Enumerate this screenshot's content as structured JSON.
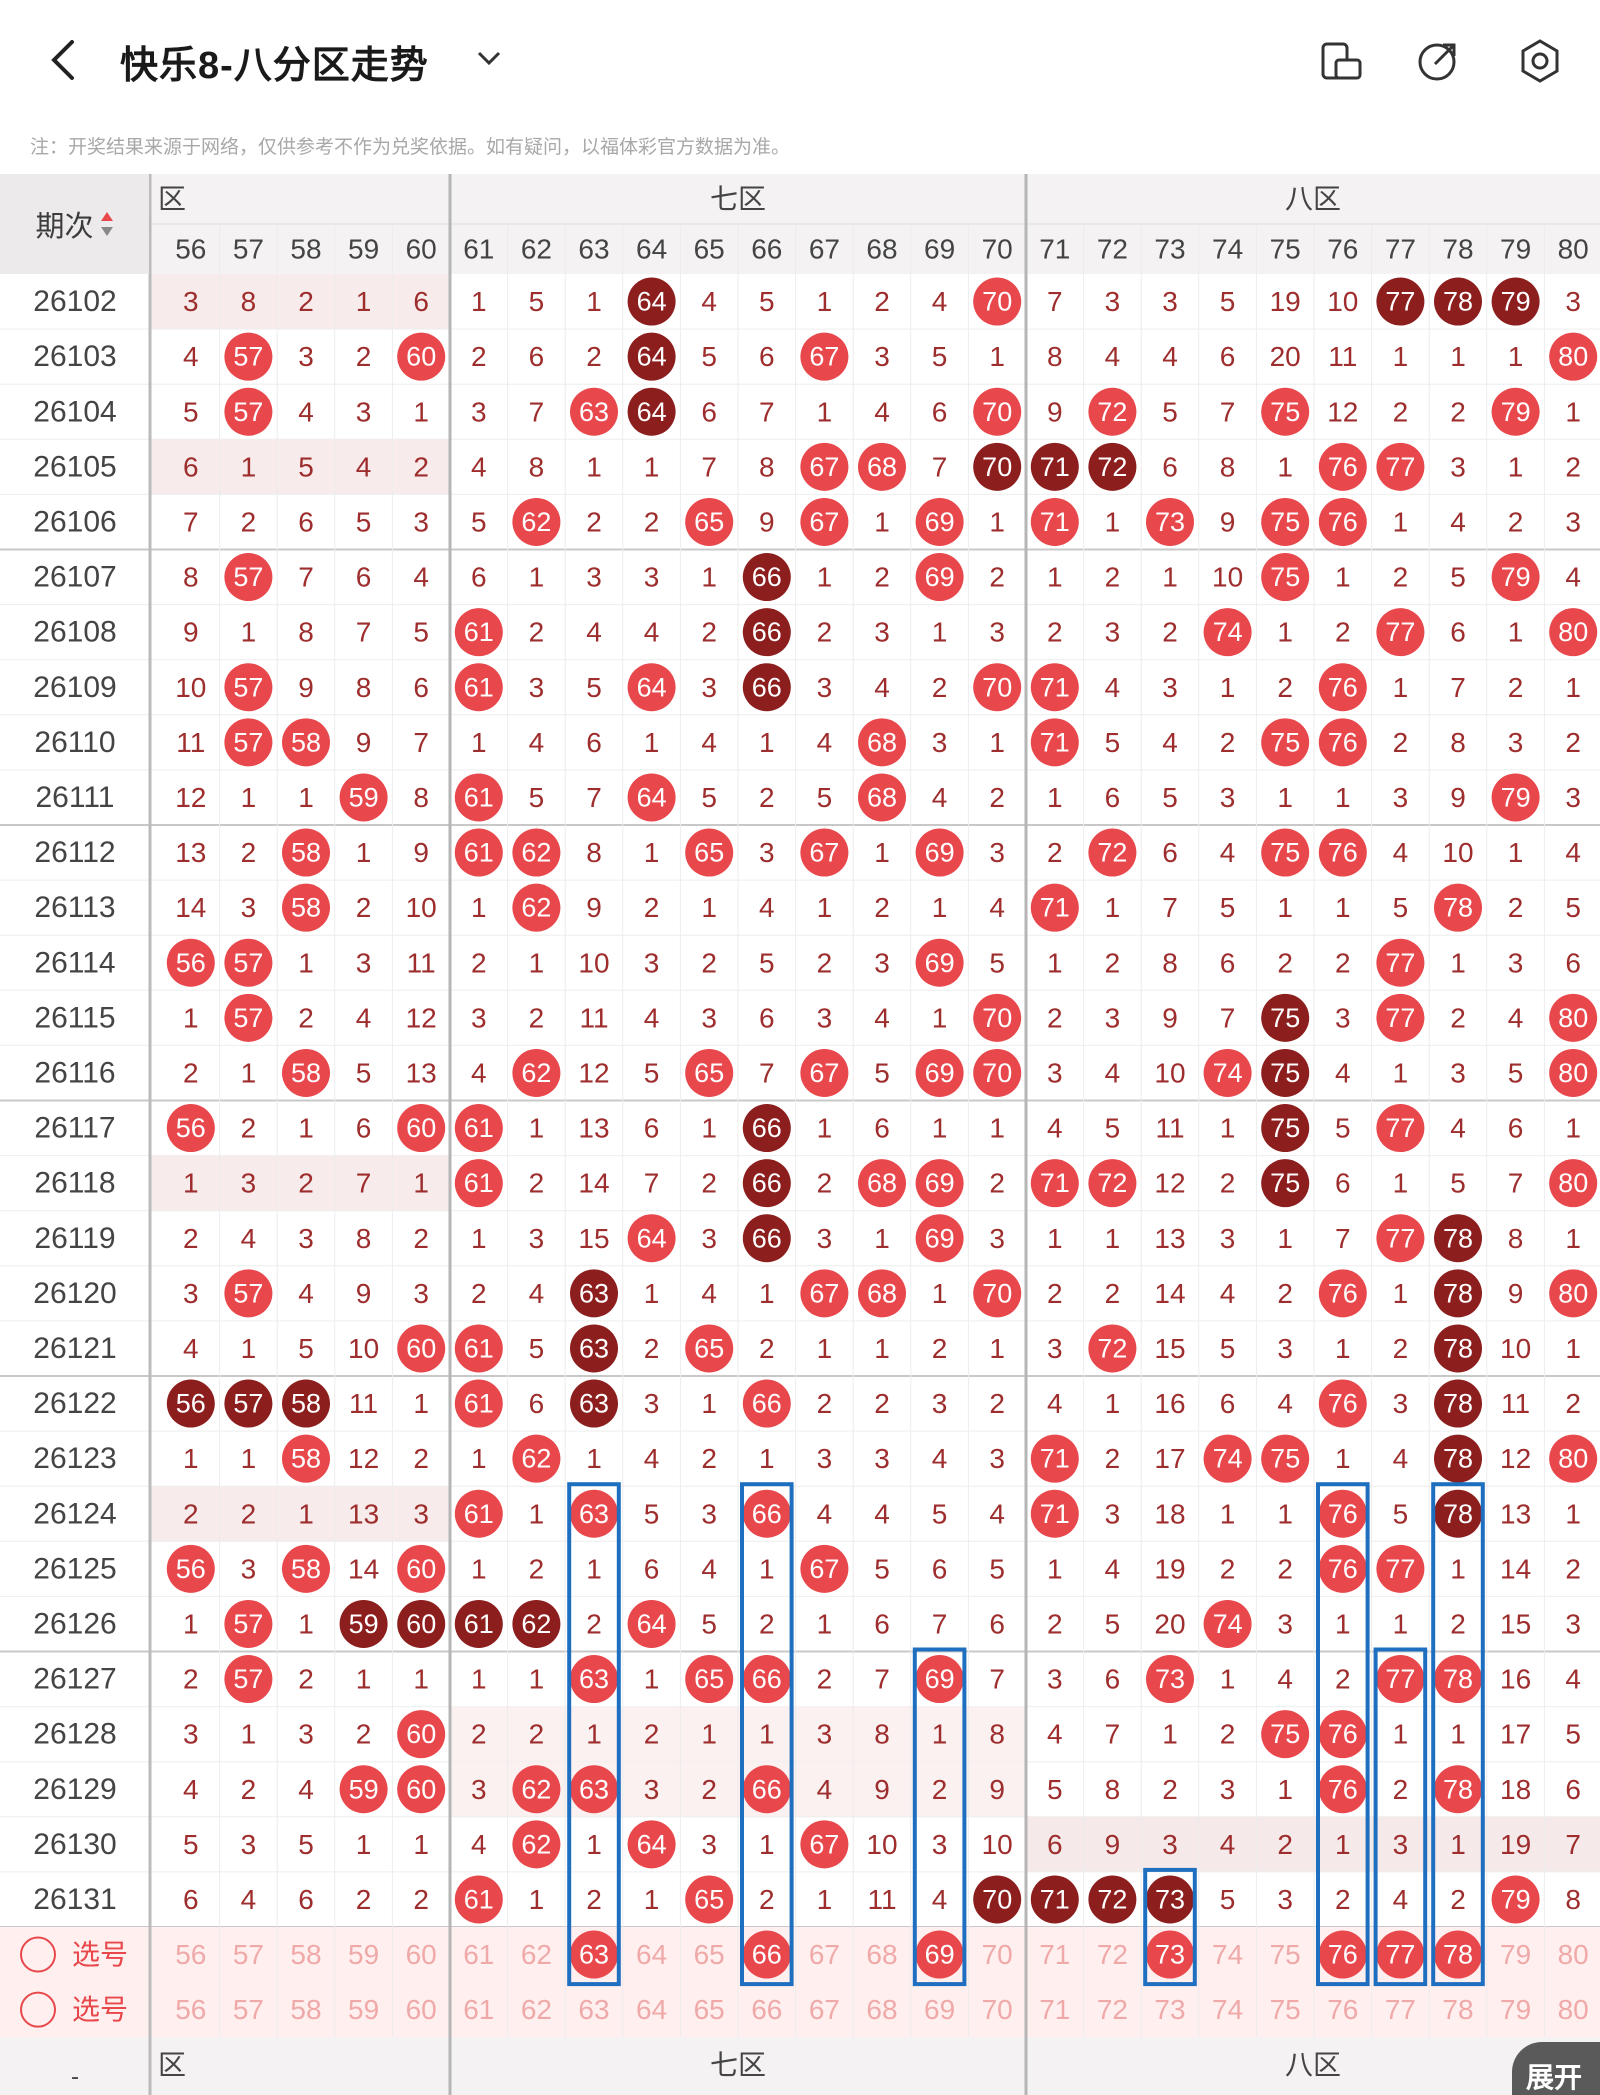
{
  "header": {
    "title": "快乐8-八分区走势",
    "back_icon": "chevron-left-icon",
    "dropdown_icon": "chevron-down-icon",
    "icons": [
      "tablet-landscape-icon",
      "share-icon",
      "settings-icon"
    ]
  },
  "note": "注：开奖结果来源于网络，仅供参考不作为兑奖依据。如有疑问，以福体彩官方数据为准。",
  "table": {
    "period_header": "期次",
    "zones": [
      "六区",
      "七区",
      "八区"
    ],
    "zone_six_visible_label": "六区",
    "zone_six_clipped_label": "区",
    "columns": [
      56,
      57,
      58,
      59,
      60,
      61,
      62,
      63,
      64,
      65,
      66,
      67,
      68,
      69,
      70,
      71,
      72,
      73,
      74,
      75,
      76,
      77,
      78,
      79,
      80
    ],
    "select_label": "选号",
    "expand_label": "展开",
    "rows": [
      {
        "period": "26102",
        "cells": [
          3,
          8,
          2,
          1,
          6,
          1,
          5,
          1,
          "H64",
          4,
          5,
          1,
          2,
          4,
          "R70",
          7,
          3,
          3,
          5,
          19,
          10,
          "H77",
          "H78",
          "H79",
          3
        ]
      },
      {
        "period": "26103",
        "cells": [
          4,
          "R57",
          3,
          2,
          "R60",
          2,
          6,
          2,
          "H64",
          5,
          6,
          "R67",
          3,
          5,
          1,
          8,
          4,
          4,
          6,
          20,
          11,
          1,
          1,
          1,
          "R80"
        ]
      },
      {
        "period": "26104",
        "cells": [
          5,
          "R57",
          4,
          3,
          1,
          3,
          7,
          "R63",
          "H64",
          6,
          7,
          1,
          4,
          6,
          "R70",
          9,
          "R72",
          5,
          7,
          "R75",
          12,
          2,
          2,
          "R79",
          1
        ]
      },
      {
        "period": "26105",
        "cells": [
          6,
          1,
          5,
          4,
          2,
          4,
          8,
          1,
          1,
          7,
          8,
          "R67",
          "R68",
          7,
          "H70",
          "H71",
          "H72",
          6,
          8,
          1,
          "R76",
          "R77",
          3,
          1,
          2
        ]
      },
      {
        "period": "26106",
        "cells": [
          7,
          2,
          6,
          5,
          3,
          5,
          "R62",
          2,
          2,
          "R65",
          9,
          "R67",
          1,
          "R69",
          1,
          "R71",
          1,
          "R73",
          9,
          "R75",
          "R76",
          1,
          4,
          2,
          3
        ]
      },
      {
        "period": "26107",
        "cells": [
          8,
          "R57",
          7,
          6,
          4,
          6,
          1,
          3,
          3,
          1,
          "H66",
          1,
          2,
          "R69",
          2,
          1,
          2,
          1,
          10,
          "R75",
          1,
          2,
          5,
          "R79",
          4
        ]
      },
      {
        "period": "26108",
        "cells": [
          9,
          1,
          8,
          7,
          5,
          "R61",
          2,
          4,
          4,
          2,
          "H66",
          2,
          3,
          1,
          3,
          2,
          3,
          2,
          "R74",
          1,
          2,
          "R77",
          6,
          1,
          "R80"
        ]
      },
      {
        "period": "26109",
        "cells": [
          10,
          "R57",
          9,
          8,
          6,
          "R61",
          3,
          5,
          "R64",
          3,
          "H66",
          3,
          4,
          2,
          "R70",
          "R71",
          4,
          3,
          1,
          2,
          "R76",
          1,
          7,
          2,
          1
        ]
      },
      {
        "period": "26110",
        "cells": [
          11,
          "R57",
          "R58",
          9,
          7,
          1,
          4,
          6,
          1,
          4,
          1,
          4,
          "R68",
          3,
          1,
          "R71",
          5,
          4,
          2,
          "R75",
          "R76",
          2,
          8,
          3,
          2
        ]
      },
      {
        "period": "26111",
        "cells": [
          12,
          1,
          1,
          "R59",
          8,
          "R61",
          5,
          7,
          "R64",
          5,
          2,
          5,
          "R68",
          4,
          2,
          1,
          6,
          5,
          3,
          1,
          1,
          3,
          9,
          "R79",
          3
        ]
      },
      {
        "period": "26112",
        "cells": [
          13,
          2,
          "R58",
          1,
          9,
          "R61",
          "R62",
          8,
          1,
          "R65",
          3,
          "R67",
          1,
          "R69",
          3,
          2,
          "R72",
          6,
          4,
          "R75",
          "R76",
          4,
          10,
          1,
          4
        ]
      },
      {
        "period": "26113",
        "cells": [
          14,
          3,
          "R58",
          2,
          10,
          1,
          "R62",
          9,
          2,
          1,
          4,
          1,
          2,
          1,
          4,
          "R71",
          1,
          7,
          5,
          1,
          1,
          5,
          "R78",
          2,
          5
        ]
      },
      {
        "period": "26114",
        "cells": [
          "R56",
          "R57",
          1,
          3,
          11,
          2,
          1,
          10,
          3,
          2,
          5,
          2,
          3,
          "R69",
          5,
          1,
          2,
          8,
          6,
          2,
          2,
          "R77",
          1,
          3,
          6
        ]
      },
      {
        "period": "26115",
        "cells": [
          1,
          "R57",
          2,
          4,
          12,
          3,
          2,
          11,
          4,
          3,
          6,
          3,
          4,
          1,
          "R70",
          2,
          3,
          9,
          7,
          "H75",
          3,
          "R77",
          2,
          4,
          "R80"
        ]
      },
      {
        "period": "26116",
        "cells": [
          2,
          1,
          "R58",
          5,
          13,
          4,
          "R62",
          12,
          5,
          "R65",
          7,
          "R67",
          5,
          "R69",
          "R70",
          3,
          4,
          10,
          "R74",
          "H75",
          4,
          1,
          3,
          5,
          "R80"
        ]
      },
      {
        "period": "26117",
        "cells": [
          "R56",
          2,
          1,
          6,
          "R60",
          "R61",
          1,
          13,
          6,
          1,
          "H66",
          1,
          6,
          1,
          1,
          4,
          5,
          11,
          1,
          "H75",
          5,
          "R77",
          4,
          6,
          1
        ]
      },
      {
        "period": "26118",
        "cells": [
          1,
          3,
          2,
          7,
          1,
          "R61",
          2,
          14,
          7,
          2,
          "H66",
          2,
          "R68",
          "R69",
          2,
          "R71",
          "R72",
          12,
          2,
          "H75",
          6,
          1,
          5,
          7,
          "R80"
        ]
      },
      {
        "period": "26119",
        "cells": [
          2,
          4,
          3,
          8,
          2,
          1,
          3,
          15,
          "R64",
          3,
          "H66",
          3,
          1,
          "R69",
          3,
          1,
          1,
          13,
          3,
          1,
          7,
          "R77",
          "H78",
          8,
          1
        ]
      },
      {
        "period": "26120",
        "cells": [
          3,
          "R57",
          4,
          9,
          3,
          2,
          4,
          "H63",
          1,
          4,
          1,
          "R67",
          "R68",
          1,
          "R70",
          2,
          2,
          14,
          4,
          2,
          "R76",
          1,
          "H78",
          9,
          "R80"
        ]
      },
      {
        "period": "26121",
        "cells": [
          4,
          1,
          5,
          10,
          "R60",
          "R61",
          5,
          "H63",
          2,
          "R65",
          2,
          1,
          1,
          2,
          1,
          3,
          "R72",
          15,
          5,
          3,
          1,
          2,
          "H78",
          10,
          1
        ]
      },
      {
        "period": "26122",
        "cells": [
          "H56",
          "H57",
          "H58",
          11,
          1,
          "R61",
          6,
          "H63",
          3,
          1,
          "R66",
          2,
          2,
          3,
          2,
          4,
          1,
          16,
          6,
          4,
          "R76",
          3,
          "H78",
          11,
          2
        ]
      },
      {
        "period": "26123",
        "cells": [
          1,
          1,
          "R58",
          12,
          2,
          1,
          "R62",
          1,
          4,
          2,
          1,
          3,
          3,
          4,
          3,
          "R71",
          2,
          17,
          "R74",
          "R75",
          1,
          4,
          "H78",
          12,
          "R80"
        ]
      },
      {
        "period": "26124",
        "cells": [
          2,
          2,
          1,
          13,
          3,
          "R61",
          1,
          "R63",
          5,
          3,
          "R66",
          4,
          4,
          5,
          4,
          "R71",
          3,
          18,
          1,
          1,
          "R76",
          5,
          "H78",
          13,
          1
        ]
      },
      {
        "period": "26125",
        "cells": [
          "R56",
          3,
          "R58",
          14,
          "R60",
          1,
          2,
          1,
          6,
          4,
          1,
          "R67",
          5,
          6,
          5,
          1,
          4,
          19,
          2,
          2,
          "R76",
          "R77",
          1,
          14,
          2
        ]
      },
      {
        "period": "26126",
        "cells": [
          1,
          "R57",
          1,
          "H59",
          "H60",
          "H61",
          "H62",
          2,
          "R64",
          5,
          2,
          1,
          6,
          7,
          6,
          2,
          5,
          20,
          "R74",
          3,
          1,
          1,
          2,
          15,
          3
        ]
      },
      {
        "period": "26127",
        "cells": [
          2,
          "R57",
          2,
          1,
          1,
          1,
          1,
          "R63",
          1,
          "R65",
          "R66",
          2,
          7,
          "R69",
          7,
          3,
          6,
          "R73",
          1,
          4,
          2,
          "R77",
          "R78",
          16,
          4
        ]
      },
      {
        "period": "26128",
        "cells": [
          3,
          1,
          3,
          2,
          "R60",
          2,
          2,
          1,
          2,
          1,
          1,
          3,
          8,
          1,
          8,
          4,
          7,
          1,
          2,
          "R75",
          "R76",
          1,
          1,
          17,
          5
        ]
      },
      {
        "period": "26129",
        "cells": [
          4,
          2,
          4,
          "R59",
          "R60",
          3,
          "R62",
          "R63",
          3,
          2,
          "R66",
          4,
          9,
          2,
          9,
          5,
          8,
          2,
          3,
          1,
          "R76",
          2,
          "R78",
          18,
          6
        ]
      },
      {
        "period": "26130",
        "cells": [
          5,
          3,
          5,
          1,
          1,
          4,
          "R62",
          1,
          "R64",
          3,
          1,
          "R67",
          10,
          3,
          10,
          6,
          9,
          3,
          4,
          2,
          1,
          3,
          1,
          19,
          7
        ]
      },
      {
        "period": "26131",
        "cells": [
          6,
          4,
          6,
          2,
          2,
          "R61",
          1,
          2,
          1,
          "R65",
          2,
          1,
          11,
          4,
          "H70",
          "H71",
          "H72",
          "H73",
          5,
          3,
          2,
          4,
          2,
          "R79",
          8
        ]
      }
    ],
    "select_rows": [
      {
        "selected": [
          63,
          66,
          69,
          73,
          76,
          77,
          78
        ]
      },
      {
        "selected": []
      }
    ]
  },
  "colors": {
    "ball_red": "#e8474c",
    "ball_dark": "#8c1e1e",
    "text": "#9e2d2d",
    "box": "#1f6fc0"
  }
}
